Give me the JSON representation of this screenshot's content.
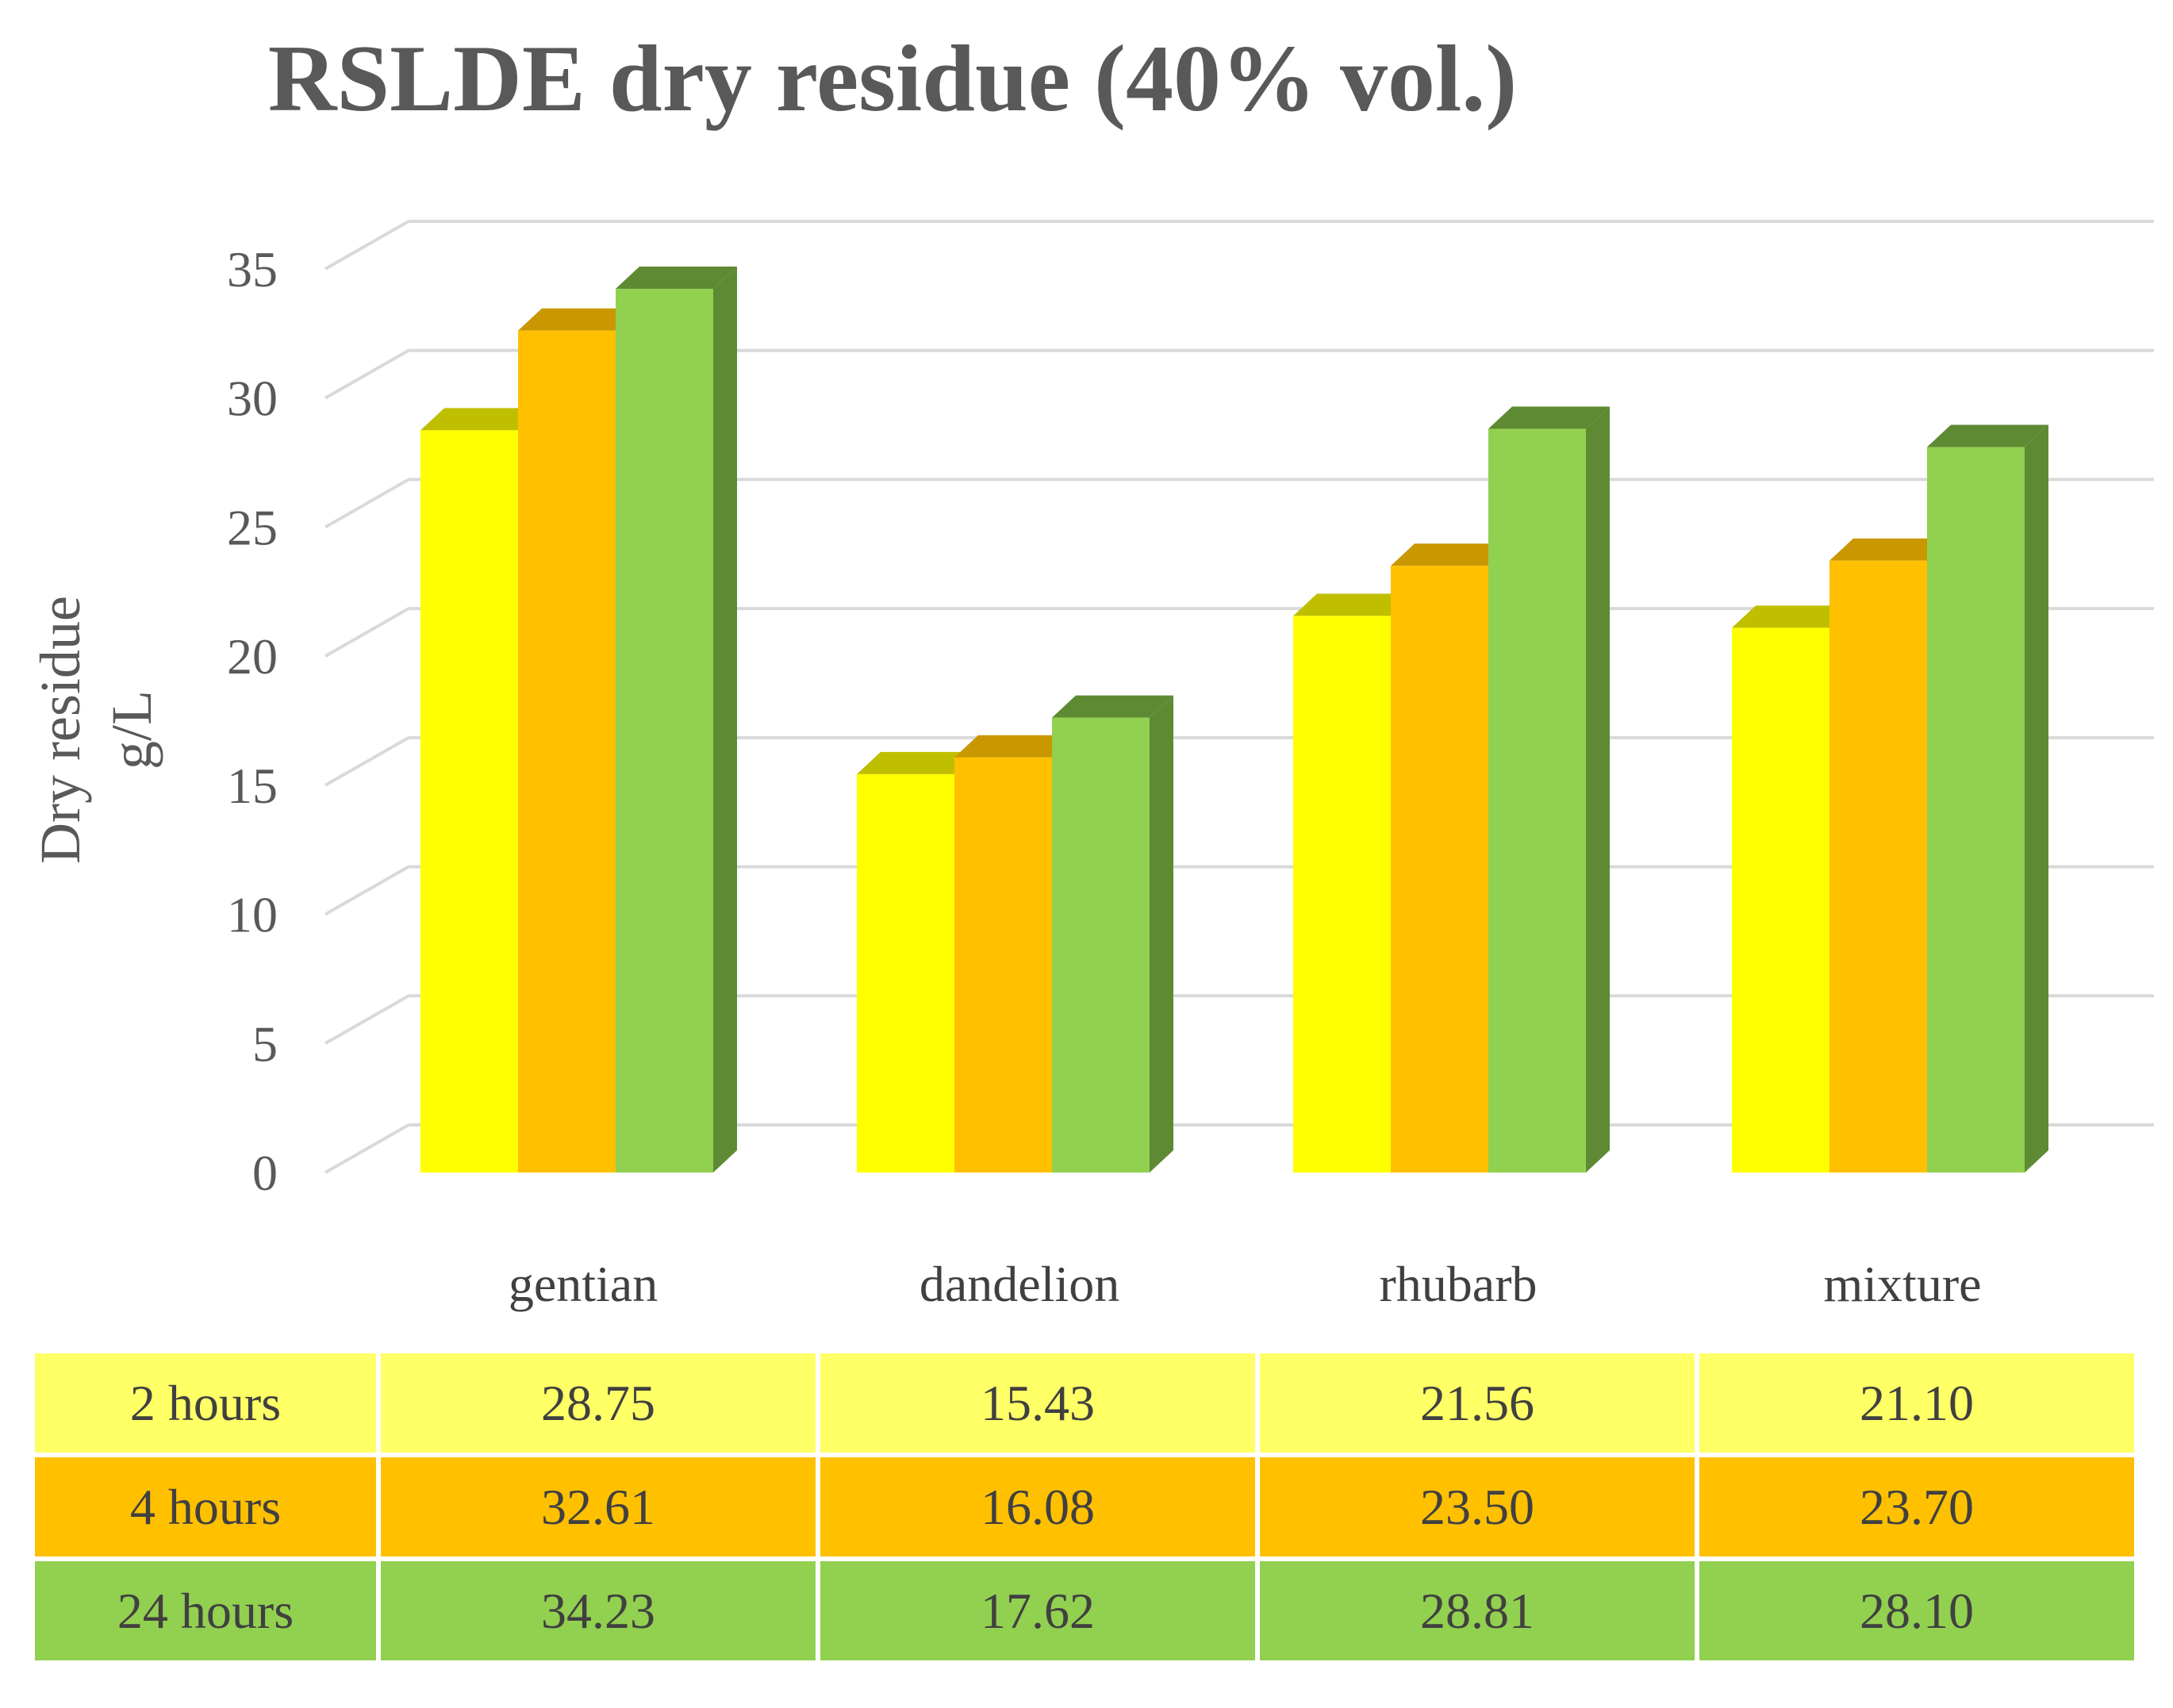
{
  "chart_data": {
    "type": "bar",
    "style": "3d-clustered-column",
    "title": "RSLDE dry residue (40% vol.)",
    "ylabel_lines": [
      "Dry residue",
      "g/L"
    ],
    "xlabel": "",
    "ylim": [
      0,
      35
    ],
    "ytick_step": 5,
    "yticks": [
      "0",
      "5",
      "10",
      "15",
      "20",
      "25",
      "30",
      "35"
    ],
    "categories": [
      "gentian",
      "dandelion",
      "rhubarb",
      "mixture"
    ],
    "series": [
      {
        "name": "2 hours",
        "values": [
          28.75,
          15.43,
          21.56,
          21.1
        ],
        "display": [
          "28.75",
          "15.43",
          "21.56",
          "21.10"
        ],
        "color": "#FFFF00",
        "top_color": "#BFBF00",
        "row_color": "#FFFF66"
      },
      {
        "name": "4 hours",
        "values": [
          32.61,
          16.08,
          23.5,
          23.7
        ],
        "display": [
          "32.61",
          "16.08",
          "23.50",
          "23.70"
        ],
        "color": "#FFC000",
        "top_color": "#C99700",
        "row_color": "#FFC000"
      },
      {
        "name": "24 hours",
        "values": [
          34.23,
          17.62,
          28.81,
          28.1
        ],
        "display": [
          "34.23",
          "17.62",
          "28.81",
          "28.10"
        ],
        "color": "#92D050",
        "top_color": "#5E8A33",
        "row_color": "#92D050"
      }
    ],
    "grid": true,
    "legend": "data table below chart"
  }
}
